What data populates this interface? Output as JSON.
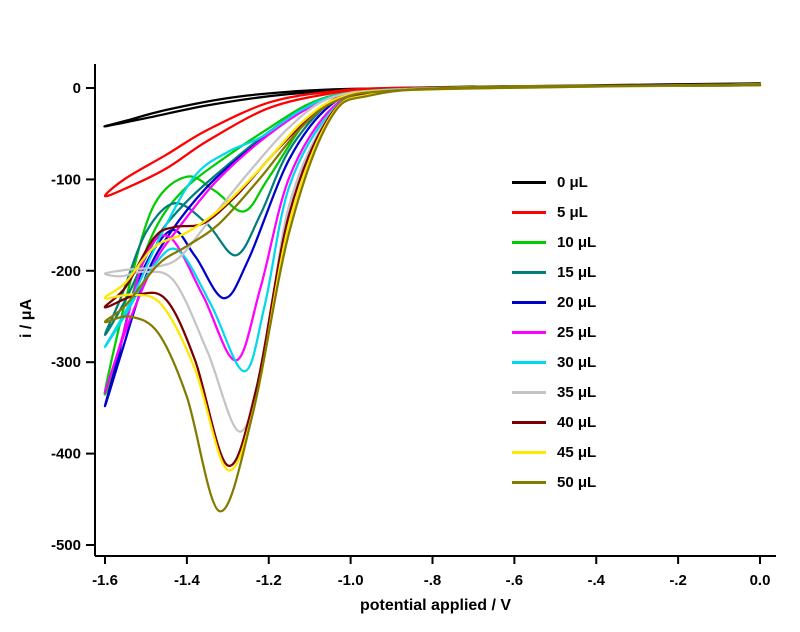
{
  "figure": {
    "background": "#ffffff"
  },
  "chart_data": {
    "type": "line",
    "title": "",
    "xlabel": "potential applied / V",
    "ylabel": "i / μA",
    "xlim": [
      -1.6,
      0.0
    ],
    "ylim": [
      -500,
      0
    ],
    "grid": false,
    "legend_position": "inside-right",
    "x_tick_values": [
      -1.6,
      -1.4,
      -1.2,
      -1.0,
      -0.8,
      -0.6,
      -0.4,
      -0.2,
      0.0
    ],
    "x_tick_labels": [
      "-1.6",
      "-1.4",
      "-1.2",
      "-1.0",
      "-.8",
      "-.6",
      "-.4",
      "-.2",
      "0.0"
    ],
    "y_tick_values": [
      0,
      -100,
      -200,
      -300,
      -400,
      -500
    ],
    "y_tick_labels": [
      "0",
      "-100",
      "-200",
      "-300",
      "-400",
      "-500"
    ],
    "series": [
      {
        "name": "0 μL",
        "volume_uL": 0,
        "color": "#000000",
        "points": [
          [
            0.0,
            4
          ],
          [
            -0.3,
            3
          ],
          [
            -0.6,
            2
          ],
          [
            -0.9,
            0
          ],
          [
            -1.05,
            -3
          ],
          [
            -1.2,
            -9
          ],
          [
            -1.35,
            -19
          ],
          [
            -1.5,
            -33
          ],
          [
            -1.6,
            -42
          ],
          [
            -1.55,
            -36
          ],
          [
            -1.45,
            -24
          ],
          [
            -1.3,
            -11
          ],
          [
            -1.15,
            -4
          ],
          [
            -1.0,
            -1
          ],
          [
            -0.7,
            1
          ],
          [
            -0.4,
            3
          ],
          [
            0.0,
            5
          ]
        ]
      },
      {
        "name": "5 μL",
        "volume_uL": 5,
        "color": "#ff0000",
        "points": [
          [
            0.0,
            3
          ],
          [
            -0.5,
            2
          ],
          [
            -0.8,
            0
          ],
          [
            -0.95,
            -2
          ],
          [
            -1.05,
            -6
          ],
          [
            -1.2,
            -22
          ],
          [
            -1.35,
            -58
          ],
          [
            -1.45,
            -88
          ],
          [
            -1.55,
            -110
          ],
          [
            -1.6,
            -118
          ],
          [
            -1.55,
            -99
          ],
          [
            -1.45,
            -73
          ],
          [
            -1.35,
            -46
          ],
          [
            -1.2,
            -16
          ],
          [
            -1.05,
            -4
          ],
          [
            -0.9,
            0
          ],
          [
            -0.5,
            2
          ],
          [
            0.0,
            4
          ]
        ]
      },
      {
        "name": "10 μL",
        "volume_uL": 10,
        "color": "#00cc00",
        "points": [
          [
            0.0,
            3
          ],
          [
            -0.6,
            1
          ],
          [
            -0.9,
            -2
          ],
          [
            -1.0,
            -7
          ],
          [
            -1.1,
            -32
          ],
          [
            -1.2,
            -98
          ],
          [
            -1.26,
            -135
          ],
          [
            -1.33,
            -113
          ],
          [
            -1.4,
            -97
          ],
          [
            -1.48,
            -128
          ],
          [
            -1.54,
            -215
          ],
          [
            -1.6,
            -332
          ],
          [
            -1.57,
            -295
          ],
          [
            -1.52,
            -205
          ],
          [
            -1.47,
            -148
          ],
          [
            -1.4,
            -108
          ],
          [
            -1.3,
            -74
          ],
          [
            -1.2,
            -44
          ],
          [
            -1.1,
            -17
          ],
          [
            -1.0,
            -5
          ],
          [
            -0.8,
            0
          ],
          [
            -0.4,
            2
          ],
          [
            0.0,
            4
          ]
        ]
      },
      {
        "name": "15 μL",
        "volume_uL": 15,
        "color": "#007d7d",
        "points": [
          [
            0.0,
            3
          ],
          [
            -0.7,
            1
          ],
          [
            -0.95,
            -4
          ],
          [
            -1.05,
            -16
          ],
          [
            -1.15,
            -68
          ],
          [
            -1.22,
            -138
          ],
          [
            -1.28,
            -183
          ],
          [
            -1.35,
            -149
          ],
          [
            -1.43,
            -126
          ],
          [
            -1.5,
            -158
          ],
          [
            -1.56,
            -228
          ],
          [
            -1.6,
            -270
          ],
          [
            -1.55,
            -232
          ],
          [
            -1.48,
            -168
          ],
          [
            -1.4,
            -124
          ],
          [
            -1.3,
            -84
          ],
          [
            -1.2,
            -48
          ],
          [
            -1.1,
            -19
          ],
          [
            -1.0,
            -6
          ],
          [
            -0.8,
            -1
          ],
          [
            -0.4,
            2
          ],
          [
            0.0,
            4
          ]
        ]
      },
      {
        "name": "20 μL",
        "volume_uL": 20,
        "color": "#0000cc",
        "points": [
          [
            0.0,
            3
          ],
          [
            -0.7,
            1
          ],
          [
            -0.95,
            -5
          ],
          [
            -1.05,
            -19
          ],
          [
            -1.15,
            -78
          ],
          [
            -1.25,
            -188
          ],
          [
            -1.31,
            -230
          ],
          [
            -1.38,
            -184
          ],
          [
            -1.44,
            -156
          ],
          [
            -1.52,
            -212
          ],
          [
            -1.57,
            -298
          ],
          [
            -1.6,
            -348
          ],
          [
            -1.56,
            -290
          ],
          [
            -1.5,
            -206
          ],
          [
            -1.44,
            -158
          ],
          [
            -1.35,
            -108
          ],
          [
            -1.25,
            -68
          ],
          [
            -1.12,
            -26
          ],
          [
            -1.02,
            -8
          ],
          [
            -0.8,
            -1
          ],
          [
            -0.4,
            2
          ],
          [
            0.0,
            4
          ]
        ]
      },
      {
        "name": "25 μL",
        "volume_uL": 25,
        "color": "#ff00ff",
        "points": [
          [
            0.0,
            3
          ],
          [
            -0.7,
            1
          ],
          [
            -0.95,
            -6
          ],
          [
            -1.05,
            -24
          ],
          [
            -1.15,
            -98
          ],
          [
            -1.22,
            -218
          ],
          [
            -1.28,
            -298
          ],
          [
            -1.36,
            -228
          ],
          [
            -1.44,
            -164
          ],
          [
            -1.5,
            -183
          ],
          [
            -1.56,
            -276
          ],
          [
            -1.6,
            -333
          ],
          [
            -1.55,
            -266
          ],
          [
            -1.48,
            -192
          ],
          [
            -1.42,
            -153
          ],
          [
            -1.33,
            -103
          ],
          [
            -1.22,
            -58
          ],
          [
            -1.1,
            -21
          ],
          [
            -1.0,
            -6
          ],
          [
            -0.8,
            0
          ],
          [
            -0.4,
            2
          ],
          [
            0.0,
            4
          ]
        ]
      },
      {
        "name": "30 μL",
        "volume_uL": 30,
        "color": "#00d8ee",
        "points": [
          [
            0.0,
            3
          ],
          [
            -0.7,
            1
          ],
          [
            -0.95,
            -6
          ],
          [
            -1.05,
            -27
          ],
          [
            -1.15,
            -108
          ],
          [
            -1.21,
            -238
          ],
          [
            -1.26,
            -310
          ],
          [
            -1.34,
            -238
          ],
          [
            -1.42,
            -178
          ],
          [
            -1.48,
            -194
          ],
          [
            -1.55,
            -248
          ],
          [
            -1.6,
            -283
          ],
          [
            -1.54,
            -236
          ],
          [
            -1.46,
            -158
          ],
          [
            -1.38,
            -96
          ],
          [
            -1.3,
            -70
          ],
          [
            -1.22,
            -54
          ],
          [
            -1.12,
            -24
          ],
          [
            -1.02,
            -7
          ],
          [
            -0.8,
            0
          ],
          [
            -0.4,
            2
          ],
          [
            0.0,
            4
          ]
        ]
      },
      {
        "name": "35 μL",
        "volume_uL": 35,
        "color": "#c4c4c4",
        "points": [
          [
            0.0,
            3
          ],
          [
            -0.7,
            1
          ],
          [
            -0.95,
            -7
          ],
          [
            -1.05,
            -29
          ],
          [
            -1.15,
            -128
          ],
          [
            -1.21,
            -288
          ],
          [
            -1.27,
            -376
          ],
          [
            -1.35,
            -288
          ],
          [
            -1.43,
            -212
          ],
          [
            -1.5,
            -201
          ],
          [
            -1.56,
            -206
          ],
          [
            -1.6,
            -203
          ],
          [
            -1.55,
            -199
          ],
          [
            -1.48,
            -196
          ],
          [
            -1.42,
            -186
          ],
          [
            -1.35,
            -148
          ],
          [
            -1.25,
            -93
          ],
          [
            -1.15,
            -43
          ],
          [
            -1.05,
            -11
          ],
          [
            -0.9,
            -2
          ],
          [
            -0.5,
            1
          ],
          [
            0.0,
            4
          ]
        ]
      },
      {
        "name": "40 μL",
        "volume_uL": 40,
        "color": "#7a0000",
        "points": [
          [
            0.0,
            3
          ],
          [
            -0.7,
            1
          ],
          [
            -0.95,
            -7
          ],
          [
            -1.05,
            -30
          ],
          [
            -1.15,
            -138
          ],
          [
            -1.23,
            -328
          ],
          [
            -1.3,
            -413
          ],
          [
            -1.38,
            -298
          ],
          [
            -1.45,
            -232
          ],
          [
            -1.52,
            -226
          ],
          [
            -1.6,
            -240
          ],
          [
            -1.55,
            -218
          ],
          [
            -1.48,
            -164
          ],
          [
            -1.43,
            -152
          ],
          [
            -1.36,
            -148
          ],
          [
            -1.28,
            -118
          ],
          [
            -1.18,
            -68
          ],
          [
            -1.08,
            -24
          ],
          [
            -1.0,
            -8
          ],
          [
            -0.8,
            -1
          ],
          [
            -0.4,
            2
          ],
          [
            0.0,
            4
          ]
        ]
      },
      {
        "name": "45 μL",
        "volume_uL": 45,
        "color": "#ffe800",
        "points": [
          [
            0.0,
            3
          ],
          [
            -0.7,
            1
          ],
          [
            -0.95,
            -7
          ],
          [
            -1.05,
            -32
          ],
          [
            -1.15,
            -148
          ],
          [
            -1.23,
            -338
          ],
          [
            -1.3,
            -418
          ],
          [
            -1.38,
            -308
          ],
          [
            -1.46,
            -238
          ],
          [
            -1.53,
            -226
          ],
          [
            -1.6,
            -230
          ],
          [
            -1.55,
            -213
          ],
          [
            -1.48,
            -174
          ],
          [
            -1.4,
            -158
          ],
          [
            -1.32,
            -133
          ],
          [
            -1.22,
            -88
          ],
          [
            -1.12,
            -38
          ],
          [
            -1.03,
            -11
          ],
          [
            -0.9,
            -3
          ],
          [
            -0.5,
            1
          ],
          [
            0.0,
            4
          ]
        ]
      },
      {
        "name": "50 μL",
        "volume_uL": 50,
        "color": "#837a00",
        "points": [
          [
            0.0,
            3
          ],
          [
            -0.7,
            1
          ],
          [
            -0.95,
            -8
          ],
          [
            -1.05,
            -34
          ],
          [
            -1.15,
            -158
          ],
          [
            -1.24,
            -358
          ],
          [
            -1.32,
            -463
          ],
          [
            -1.4,
            -338
          ],
          [
            -1.47,
            -268
          ],
          [
            -1.54,
            -250
          ],
          [
            -1.6,
            -256
          ],
          [
            -1.55,
            -238
          ],
          [
            -1.47,
            -193
          ],
          [
            -1.4,
            -173
          ],
          [
            -1.32,
            -148
          ],
          [
            -1.22,
            -98
          ],
          [
            -1.12,
            -43
          ],
          [
            -1.03,
            -13
          ],
          [
            -0.9,
            -3
          ],
          [
            -0.5,
            1
          ],
          [
            0.0,
            4
          ]
        ]
      }
    ]
  }
}
